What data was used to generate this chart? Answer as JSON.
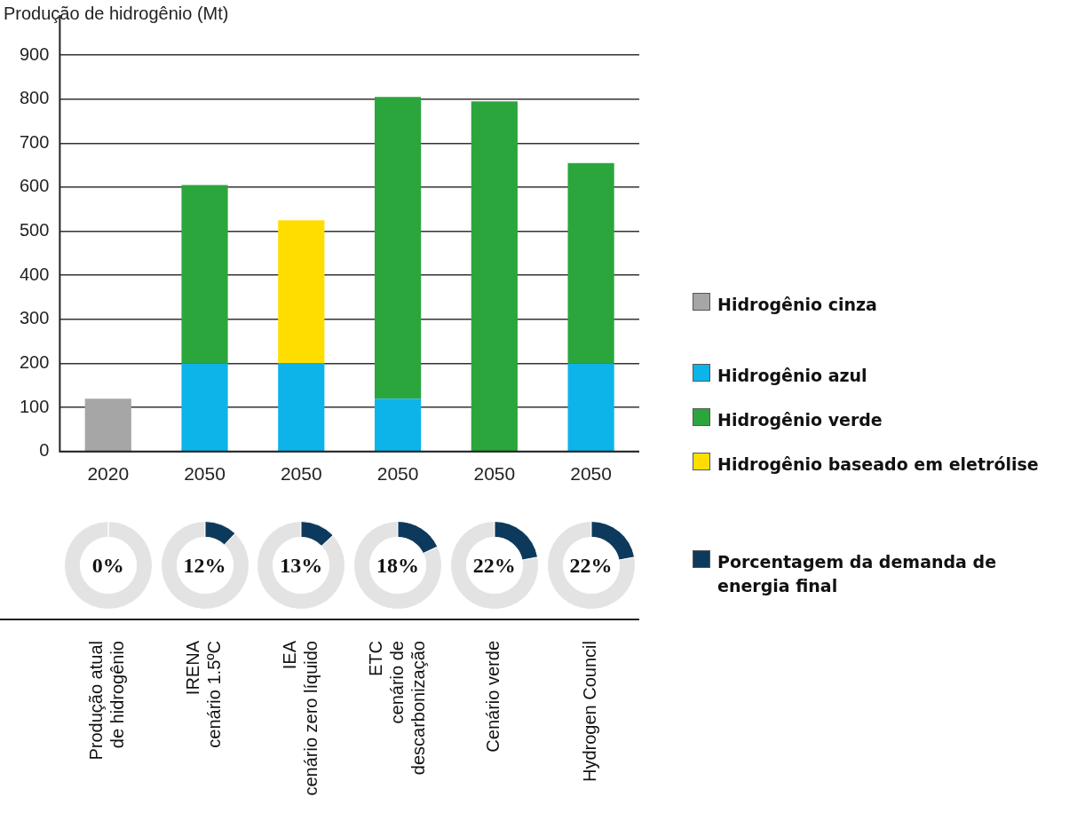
{
  "chart_data": [
    {
      "type": "bar",
      "ylabel": "Produção de hidrogênio (Mt)",
      "categories": [
        "2020",
        "2050",
        "2050",
        "2050",
        "2050",
        "2050"
      ],
      "stacked": true,
      "grid": "y",
      "legend": "right",
      "ylim": [
        0,
        900
      ],
      "yticks": [
        0,
        100,
        200,
        300,
        400,
        500,
        600,
        700,
        800,
        900
      ],
      "series": [
        {
          "name": "Hidrogênio cinza",
          "color": "#a6a6a6",
          "values": [
            120,
            null,
            null,
            null,
            null,
            null
          ]
        },
        {
          "name": "Hidrogênio azul",
          "color": "#0db4e9",
          "values": [
            null,
            200,
            200,
            120,
            null,
            200
          ]
        },
        {
          "name": "Hidrogênio verde",
          "color": "#2ba63c",
          "values": [
            null,
            405,
            null,
            685,
            795,
            455
          ]
        },
        {
          "name": "Hidrogênio baseado em eletrólise",
          "color": "#ffdd00",
          "values": [
            null,
            null,
            325,
            null,
            null,
            null
          ]
        }
      ],
      "annotations": [
        "Produção atual\nde hidrogênio",
        "IRENA\ncenário 1.5ºC",
        "IEA\ncenário zero líquido",
        "ETC\ncenário de\ndescarbonização",
        "Cenário verde",
        "Hydrogen Council"
      ]
    },
    {
      "type": "pie",
      "categories": [
        null,
        "Porcentagem da demanda de energia final"
      ],
      "values": [
        100,
        0
      ],
      "colors": [
        "#e3e3e3",
        "#0d3a5c"
      ],
      "value_labels": [
        null,
        "0%"
      ],
      "legend": "right"
    },
    {
      "type": "donut",
      "categories": [
        null,
        null
      ],
      "values": [
        88,
        12
      ],
      "colors": [
        "#e3e3e3",
        "#0d3a5c"
      ],
      "value_labels": [
        null,
        "12%"
      ]
    },
    {
      "type": "donut",
      "categories": [
        null,
        null
      ],
      "values": [
        87,
        13
      ],
      "colors": [
        "#e3e3e3",
        "#0d3a5c"
      ],
      "value_labels": [
        null,
        "13%"
      ]
    },
    {
      "type": "donut",
      "categories": [
        null,
        null
      ],
      "values": [
        82,
        18
      ],
      "colors": [
        "#e3e3e3",
        "#0d3a5c"
      ],
      "value_labels": [
        null,
        "18%"
      ]
    },
    {
      "type": "donut",
      "categories": [
        null,
        null
      ],
      "values": [
        78,
        22
      ],
      "colors": [
        "#e3e3e3",
        "#0d3a5c"
      ],
      "value_labels": [
        null,
        "22%"
      ]
    },
    {
      "type": "donut",
      "categories": [
        null,
        null
      ],
      "values": [
        78,
        22
      ],
      "colors": [
        "#e3e3e3",
        "#0d3a5c"
      ],
      "value_labels": [
        null,
        "22%"
      ]
    }
  ]
}
